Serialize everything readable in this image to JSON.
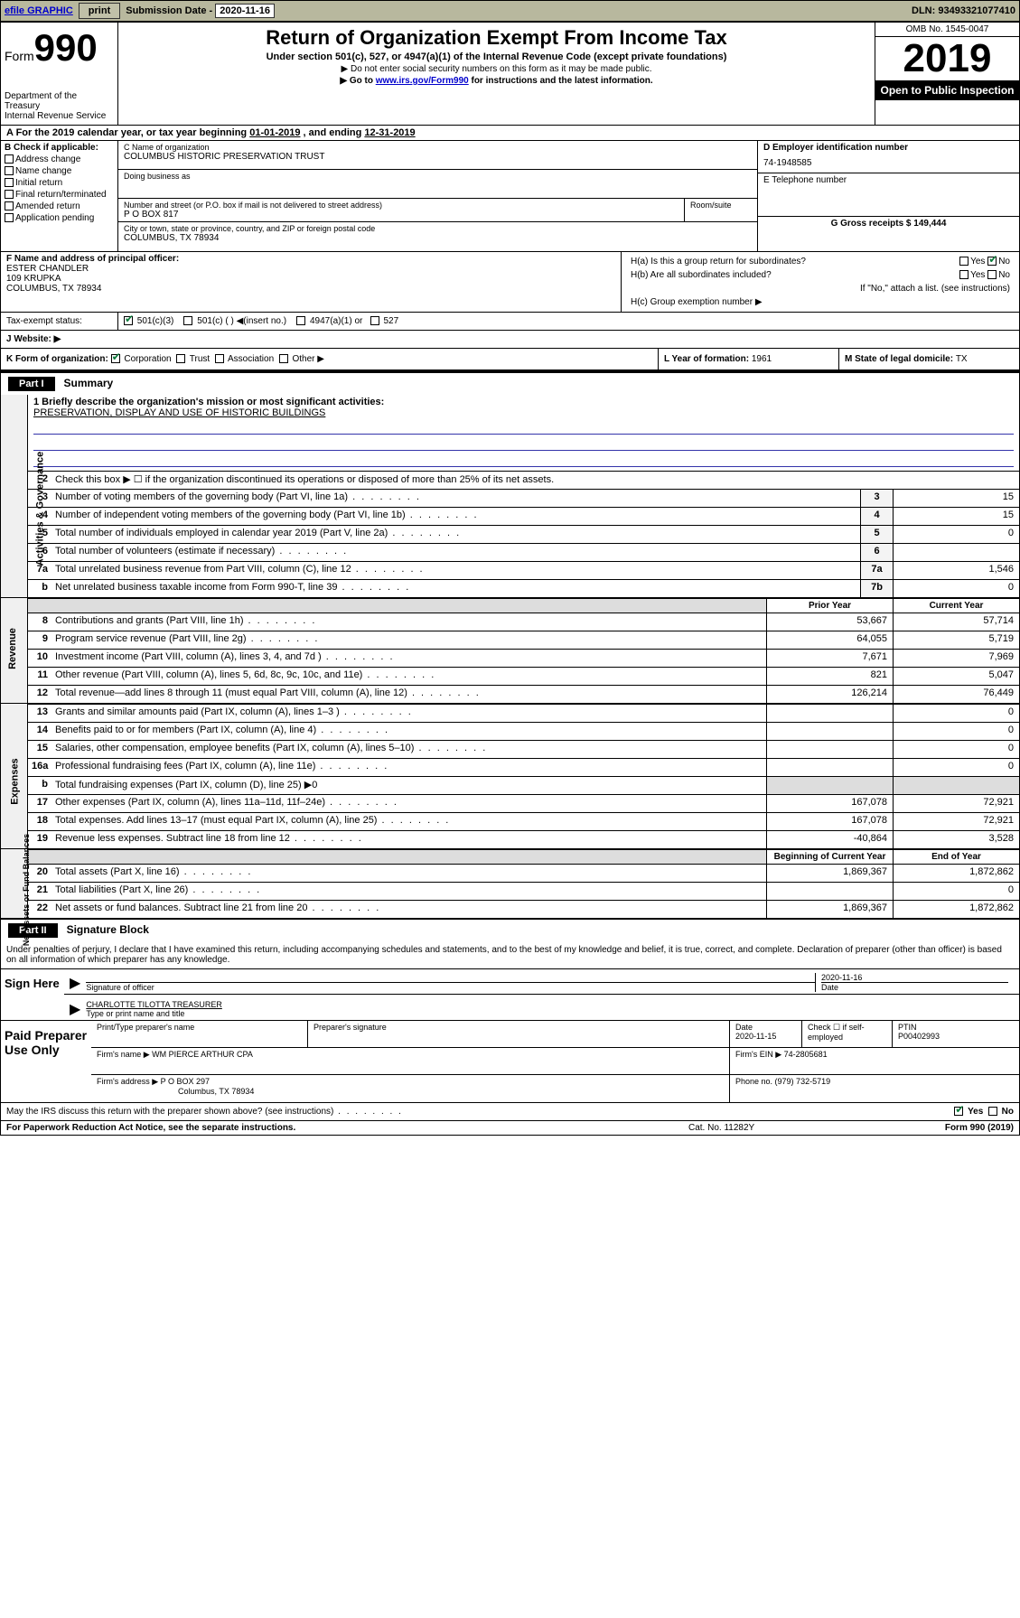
{
  "topbar": {
    "efile": "efile GRAPHIC",
    "print": "print",
    "sub_label": "Submission Date - ",
    "sub_value": "2020-11-16",
    "dln": "DLN: 93493321077410"
  },
  "header": {
    "form_prefix": "Form",
    "form_num": "990",
    "dept": "Department of the Treasury\nInternal Revenue Service",
    "title": "Return of Organization Exempt From Income Tax",
    "subtitle": "Under section 501(c), 527, or 4947(a)(1) of the Internal Revenue Code (except private foundations)",
    "note1": "▶ Do not enter social security numbers on this form as it may be made public.",
    "note2_pre": "▶ Go to ",
    "note2_link": "www.irs.gov/Form990",
    "note2_post": " for instructions and the latest information.",
    "omb": "OMB No. 1545-0047",
    "year": "2019",
    "open": "Open to Public Inspection"
  },
  "period": {
    "a": "A For the 2019 calendar year, or tax year beginning ",
    "begin": "01-01-2019",
    "mid": " , and ending ",
    "end": "12-31-2019"
  },
  "b": {
    "title": "B Check if applicable:",
    "items": [
      "Address change",
      "Name change",
      "Initial return",
      "Final return/terminated",
      "Amended return",
      "Application pending"
    ]
  },
  "c": {
    "name_label": "C Name of organization",
    "name": "COLUMBUS HISTORIC PRESERVATION TRUST",
    "dba_label": "Doing business as",
    "dba": "",
    "addr_label": "Number and street (or P.O. box if mail is not delivered to street address)",
    "room_label": "Room/suite",
    "addr": "P O BOX 817",
    "city_label": "City or town, state or province, country, and ZIP or foreign postal code",
    "city": "COLUMBUS, TX  78934"
  },
  "d": {
    "ein_label": "D Employer identification number",
    "ein": "74-1948585",
    "tel_label": "E Telephone number",
    "tel": "",
    "gross_label": "G Gross receipts $ ",
    "gross": "149,444"
  },
  "f": {
    "label": "F  Name and address of principal officer:",
    "name": "ESTER CHANDLER",
    "addr1": "109 KRUPKA",
    "addr2": "COLUMBUS, TX  78934"
  },
  "h": {
    "ha_label": "H(a)  Is this a group return for subordinates?",
    "hb_label": "H(b)  Are all subordinates included?",
    "hb_note": "If \"No,\" attach a list. (see instructions)",
    "hc_label": "H(c)  Group exemption number ▶"
  },
  "i": {
    "label": "Tax-exempt status:",
    "opts": [
      "501(c)(3)",
      "501(c) (  ) ◀(insert no.)",
      "4947(a)(1) or",
      "527"
    ]
  },
  "j": {
    "label": "J   Website: ▶"
  },
  "k": {
    "label": "K Form of organization:",
    "opts": [
      "Corporation",
      "Trust",
      "Association",
      "Other ▶"
    ],
    "l": "L Year of formation: ",
    "l_val": "1961",
    "m": "M State of legal domicile: ",
    "m_val": "TX"
  },
  "part1": {
    "header": "Part I",
    "title": "Summary",
    "line1_label": "1  Briefly describe the organization's mission or most significant activities:",
    "mission": "PRESERVATION, DISPLAY AND USE OF HISTORIC BUILDINGS",
    "line2": "Check this box ▶ ☐  if the organization discontinued its operations or disposed of more than 25% of its net assets.",
    "prior_year": "Prior Year",
    "current_year": "Current Year",
    "beg_year": "Beginning of Current Year",
    "end_year": "End of Year"
  },
  "side_labels": {
    "gov": "Activities & Governance",
    "rev": "Revenue",
    "exp": "Expenses",
    "net": "Net Assets or Fund Balances"
  },
  "gov_rows": [
    {
      "num": "3",
      "txt": "Number of voting members of the governing body (Part VI, line 1a)",
      "box": "3",
      "val": "15"
    },
    {
      "num": "4",
      "txt": "Number of independent voting members of the governing body (Part VI, line 1b)",
      "box": "4",
      "val": "15"
    },
    {
      "num": "5",
      "txt": "Total number of individuals employed in calendar year 2019 (Part V, line 2a)",
      "box": "5",
      "val": "0"
    },
    {
      "num": "6",
      "txt": "Total number of volunteers (estimate if necessary)",
      "box": "6",
      "val": ""
    },
    {
      "num": "7a",
      "txt": "Total unrelated business revenue from Part VIII, column (C), line 12",
      "box": "7a",
      "val": "1,546"
    },
    {
      "num": "b",
      "txt": "Net unrelated business taxable income from Form 990-T, line 39",
      "box": "7b",
      "val": "0"
    }
  ],
  "rev_rows": [
    {
      "num": "8",
      "txt": "Contributions and grants (Part VIII, line 1h)",
      "py": "53,667",
      "cy": "57,714"
    },
    {
      "num": "9",
      "txt": "Program service revenue (Part VIII, line 2g)",
      "py": "64,055",
      "cy": "5,719"
    },
    {
      "num": "10",
      "txt": "Investment income (Part VIII, column (A), lines 3, 4, and 7d )",
      "py": "7,671",
      "cy": "7,969"
    },
    {
      "num": "11",
      "txt": "Other revenue (Part VIII, column (A), lines 5, 6d, 8c, 9c, 10c, and 11e)",
      "py": "821",
      "cy": "5,047"
    },
    {
      "num": "12",
      "txt": "Total revenue—add lines 8 through 11 (must equal Part VIII, column (A), line 12)",
      "py": "126,214",
      "cy": "76,449"
    }
  ],
  "exp_rows": [
    {
      "num": "13",
      "txt": "Grants and similar amounts paid (Part IX, column (A), lines 1–3 )",
      "py": "",
      "cy": "0"
    },
    {
      "num": "14",
      "txt": "Benefits paid to or for members (Part IX, column (A), line 4)",
      "py": "",
      "cy": "0"
    },
    {
      "num": "15",
      "txt": "Salaries, other compensation, employee benefits (Part IX, column (A), lines 5–10)",
      "py": "",
      "cy": "0"
    },
    {
      "num": "16a",
      "txt": "Professional fundraising fees (Part IX, column (A), line 11e)",
      "py": "",
      "cy": "0"
    },
    {
      "num": "b",
      "txt": "Total fundraising expenses (Part IX, column (D), line 25) ▶0",
      "py": "",
      "cy": "",
      "noval": true
    },
    {
      "num": "17",
      "txt": "Other expenses (Part IX, column (A), lines 11a–11d, 11f–24e)",
      "py": "167,078",
      "cy": "72,921"
    },
    {
      "num": "18",
      "txt": "Total expenses. Add lines 13–17 (must equal Part IX, column (A), line 25)",
      "py": "167,078",
      "cy": "72,921"
    },
    {
      "num": "19",
      "txt": "Revenue less expenses. Subtract line 18 from line 12",
      "py": "-40,864",
      "cy": "3,528"
    }
  ],
  "net_rows": [
    {
      "num": "20",
      "txt": "Total assets (Part X, line 16)",
      "py": "1,869,367",
      "cy": "1,872,862"
    },
    {
      "num": "21",
      "txt": "Total liabilities (Part X, line 26)",
      "py": "",
      "cy": "0"
    },
    {
      "num": "22",
      "txt": "Net assets or fund balances. Subtract line 21 from line 20",
      "py": "1,869,367",
      "cy": "1,872,862"
    }
  ],
  "part2": {
    "header": "Part II",
    "title": "Signature Block",
    "declare": "Under penalties of perjury, I declare that I have examined this return, including accompanying schedules and statements, and to the best of my knowledge and belief, it is true, correct, and complete. Declaration of preparer (other than officer) is based on all information of which preparer has any knowledge."
  },
  "sign": {
    "here": "Sign Here",
    "sig_of_officer": "Signature of officer",
    "sig_date": "2020-11-16",
    "date_label": "Date",
    "name_title": "CHARLOTTE TILOTTA TREASURER",
    "type_label": "Type or print name and title"
  },
  "prep": {
    "label": "Paid Preparer Use Only",
    "print_name_label": "Print/Type preparer's name",
    "print_name": "",
    "sig_label": "Preparer's signature",
    "date_label": "Date",
    "date": "2020-11-15",
    "check_label": "Check ☐ if self-employed",
    "ptin_label": "PTIN",
    "ptin": "P00402993",
    "firm_name_label": "Firm's name    ▶ ",
    "firm_name": "WM PIERCE ARTHUR CPA",
    "firm_ein_label": "Firm's EIN ▶ ",
    "firm_ein": "74-2805681",
    "firm_addr_label": "Firm's address ▶ ",
    "firm_addr1": "P O BOX 297",
    "firm_addr2": "Columbus, TX  78934",
    "phone_label": "Phone no. ",
    "phone": "(979) 732-5719"
  },
  "footer": {
    "discuss": "May the IRS discuss this return with the preparer shown above? (see instructions)",
    "yes": "Yes",
    "no": "No",
    "paperwork": "For Paperwork Reduction Act Notice, see the separate instructions.",
    "cat": "Cat. No. 11282Y",
    "form": "Form 990 (2019)"
  }
}
